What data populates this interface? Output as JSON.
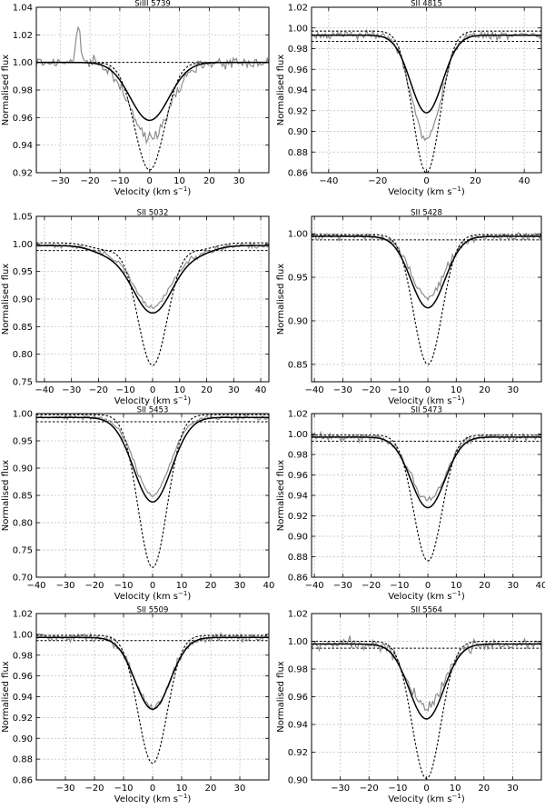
{
  "chart_data": [
    {
      "type": "line",
      "title": "SiIII 5739",
      "xlabel": "Velocity (km s",
      "xlabel_sup": "−1",
      "xlabel_end": ")",
      "ylabel": "Normalised flux",
      "xlim": [
        -38,
        40
      ],
      "ylim": [
        0.92,
        1.04
      ],
      "xticks": [
        -30,
        -20,
        -10,
        0,
        10,
        20,
        30
      ],
      "xtick_labels": [
        "−30",
        "−20",
        "−10",
        "0",
        "10",
        "20",
        "30"
      ],
      "yticks": [
        0.92,
        0.94,
        0.96,
        0.98,
        1.0,
        1.02,
        1.04
      ],
      "ytick_labels": [
        "0.92",
        "0.94",
        "0.96",
        "0.98",
        "1.00",
        "1.02",
        "1.04"
      ],
      "line_depths": {
        "observed": 0.945,
        "model_solid": 0.958,
        "model_dotted": 0.922
      },
      "line_widths": {
        "observed": 6.5,
        "model_solid": 6.5,
        "model_dotted": 5.0
      },
      "continuum": {
        "solid": 1.0,
        "dotted": 1.0,
        "flat": 1.0
      },
      "noise": 0.004,
      "feature": {
        "x": -24,
        "h": 0.025,
        "w": 0.8
      }
    },
    {
      "type": "line",
      "title": "SII 4815",
      "xlabel": "Velocity (km s",
      "xlabel_sup": "−1",
      "xlabel_end": ")",
      "ylabel": "Normalised flux",
      "xlim": [
        -47,
        47
      ],
      "ylim": [
        0.86,
        1.02
      ],
      "xticks": [
        -40,
        -20,
        0,
        20,
        40
      ],
      "xtick_labels": [
        "−40",
        "−20",
        "0",
        "20",
        "40"
      ],
      "yticks": [
        0.86,
        0.88,
        0.9,
        0.92,
        0.94,
        0.96,
        0.98,
        1.0,
        1.02
      ],
      "ytick_labels": [
        "0.86",
        "0.88",
        "0.90",
        "0.92",
        "0.94",
        "0.96",
        "0.98",
        "1.00",
        "1.02"
      ],
      "line_depths": {
        "observed": 0.893,
        "model_solid": 0.918,
        "model_dotted": 0.86
      },
      "line_widths": {
        "observed": 6.0,
        "model_solid": 6.5,
        "model_dotted": 5.5
      },
      "continuum": {
        "solid": 0.993,
        "dotted": 0.997,
        "flat": 0.987
      },
      "noise": 0.004
    },
    {
      "type": "line",
      "title": "SII 5032",
      "xlabel": "Velocity (km s",
      "xlabel_sup": "−1",
      "xlabel_end": ")",
      "ylabel": "Normalised flux",
      "xlim": [
        -43,
        43
      ],
      "ylim": [
        0.75,
        1.05
      ],
      "xticks": [
        -40,
        -30,
        -20,
        -10,
        0,
        10,
        20,
        30,
        40
      ],
      "xtick_labels": [
        "−40",
        "−30",
        "−20",
        "−10",
        "0",
        "10",
        "20",
        "30",
        "40"
      ],
      "yticks": [
        0.75,
        0.8,
        0.85,
        0.9,
        0.95,
        1.0,
        1.05
      ],
      "ytick_labels": [
        "0.75",
        "0.80",
        "0.85",
        "0.90",
        "0.95",
        "1.00",
        "1.05"
      ],
      "line_depths": {
        "observed": 0.885,
        "model_solid": 0.875,
        "model_dotted": 0.78
      },
      "line_widths": {
        "observed": 7.0,
        "model_solid": 7.5,
        "model_dotted": 5.5
      },
      "continuum": {
        "solid": 0.997,
        "dotted": 1.002,
        "flat": 0.988
      },
      "noise": 0.005,
      "wings": true
    },
    {
      "type": "line",
      "title": "SII 5428",
      "xlabel": "Velocity (km s",
      "xlabel_sup": "−1",
      "xlabel_end": ")",
      "ylabel": "Normalised flux",
      "xlim": [
        -41,
        40
      ],
      "ylim": [
        0.83,
        1.02
      ],
      "xticks": [
        -40,
        -30,
        -20,
        -10,
        0,
        10,
        20,
        30
      ],
      "xtick_labels": [
        "−40",
        "−30",
        "−20",
        "−10",
        "0",
        "10",
        "20",
        "30"
      ],
      "yticks": [
        0.85,
        0.9,
        0.95,
        1.0
      ],
      "ytick_labels": [
        "0.85",
        "0.90",
        "0.95",
        "1.00"
      ],
      "line_depths": {
        "observed": 0.928,
        "model_solid": 0.915,
        "model_dotted": 0.85
      },
      "line_widths": {
        "observed": 6.0,
        "model_solid": 6.0,
        "model_dotted": 5.0
      },
      "continuum": {
        "solid": 0.997,
        "dotted": 0.999,
        "flat": 0.993
      },
      "noise": 0.004
    },
    {
      "type": "line",
      "title": "SII 5453",
      "xlabel": "Velocity (km s",
      "xlabel_sup": "−1",
      "xlabel_end": ")",
      "ylabel": "Normalised flux",
      "xlim": [
        -40,
        40
      ],
      "ylim": [
        0.7,
        1.0
      ],
      "xticks": [
        -40,
        -30,
        -20,
        -10,
        0,
        10,
        20,
        30,
        40
      ],
      "xtick_labels": [
        "−40",
        "−30",
        "−20",
        "−10",
        "0",
        "10",
        "20",
        "30",
        "40"
      ],
      "yticks": [
        0.7,
        0.75,
        0.8,
        0.85,
        0.9,
        0.95,
        1.0
      ],
      "ytick_labels": [
        "0.70",
        "0.75",
        "0.80",
        "0.85",
        "0.90",
        "0.95",
        "1.00"
      ],
      "line_depths": {
        "observed": 0.85,
        "model_solid": 0.838,
        "model_dotted": 0.718
      },
      "line_widths": {
        "observed": 6.0,
        "model_solid": 6.5,
        "model_dotted": 5.0
      },
      "continuum": {
        "solid": 0.993,
        "dotted": 0.998,
        "flat": 0.985
      },
      "noise": 0.004
    },
    {
      "type": "line",
      "title": "SII 5473",
      "xlabel": "Velocity (km s",
      "xlabel_sup": "−1",
      "xlabel_end": ")",
      "ylabel": "Normalised flux",
      "xlim": [
        -41,
        40
      ],
      "ylim": [
        0.86,
        1.02
      ],
      "xticks": [
        -40,
        -30,
        -20,
        -10,
        0,
        10,
        20,
        30,
        40
      ],
      "xtick_labels": [
        "−40",
        "−30",
        "−20",
        "−10",
        "0",
        "10",
        "20",
        "30",
        "40"
      ],
      "yticks": [
        0.86,
        0.88,
        0.9,
        0.92,
        0.94,
        0.96,
        0.98,
        1.0,
        1.02
      ],
      "ytick_labels": [
        "0.86",
        "0.88",
        "0.90",
        "0.92",
        "0.94",
        "0.96",
        "0.98",
        "1.00",
        "1.02"
      ],
      "line_depths": {
        "observed": 0.935,
        "model_solid": 0.928,
        "model_dotted": 0.876
      },
      "line_widths": {
        "observed": 6.0,
        "model_solid": 6.0,
        "model_dotted": 5.0
      },
      "continuum": {
        "solid": 0.997,
        "dotted": 0.999,
        "flat": 0.993
      },
      "noise": 0.004
    },
    {
      "type": "line",
      "title": "SII 5509",
      "xlabel": "Velocity (km s",
      "xlabel_sup": "−1",
      "xlabel_end": ")",
      "ylabel": "Normalised flux",
      "xlim": [
        -40,
        40
      ],
      "ylim": [
        0.86,
        1.02
      ],
      "xticks": [
        -30,
        -20,
        -10,
        0,
        10,
        20,
        30
      ],
      "xtick_labels": [
        "−30",
        "−20",
        "−10",
        "0",
        "10",
        "20",
        "30"
      ],
      "yticks": [
        0.86,
        0.88,
        0.9,
        0.92,
        0.94,
        0.96,
        0.98,
        1.0,
        1.02
      ],
      "ytick_labels": [
        "0.86",
        "0.88",
        "0.90",
        "0.92",
        "0.94",
        "0.96",
        "0.98",
        "1.00",
        "1.02"
      ],
      "line_depths": {
        "observed": 0.93,
        "model_solid": 0.928,
        "model_dotted": 0.876
      },
      "line_widths": {
        "observed": 6.0,
        "model_solid": 6.0,
        "model_dotted": 5.0
      },
      "continuum": {
        "solid": 0.997,
        "dotted": 0.999,
        "flat": 0.994
      },
      "noise": 0.004
    },
    {
      "type": "line",
      "title": "SII 5564",
      "xlabel": "Velocity (km s",
      "xlabel_sup": "−1",
      "xlabel_end": ")",
      "ylabel": "Normalised flux",
      "xlim": [
        -40,
        40
      ],
      "ylim": [
        0.9,
        1.02
      ],
      "xticks": [
        -30,
        -20,
        -10,
        0,
        10,
        20,
        30
      ],
      "xtick_labels": [
        "−30",
        "−20",
        "−10",
        "0",
        "10",
        "20",
        "30"
      ],
      "yticks": [
        0.9,
        0.92,
        0.94,
        0.96,
        0.98,
        1.0,
        1.02
      ],
      "ytick_labels": [
        "0.90",
        "0.92",
        "0.94",
        "0.96",
        "0.98",
        "1.00",
        "1.02"
      ],
      "line_depths": {
        "observed": 0.952,
        "model_solid": 0.944,
        "model_dotted": 0.901
      },
      "line_widths": {
        "observed": 6.0,
        "model_solid": 6.0,
        "model_dotted": 5.0
      },
      "continuum": {
        "solid": 0.998,
        "dotted": 1.0,
        "flat": 0.995
      },
      "noise": 0.004
    }
  ],
  "style": {
    "observed_color": "#8c8c8c",
    "model_color": "#000000",
    "grid_color": "#bdbdbd"
  }
}
